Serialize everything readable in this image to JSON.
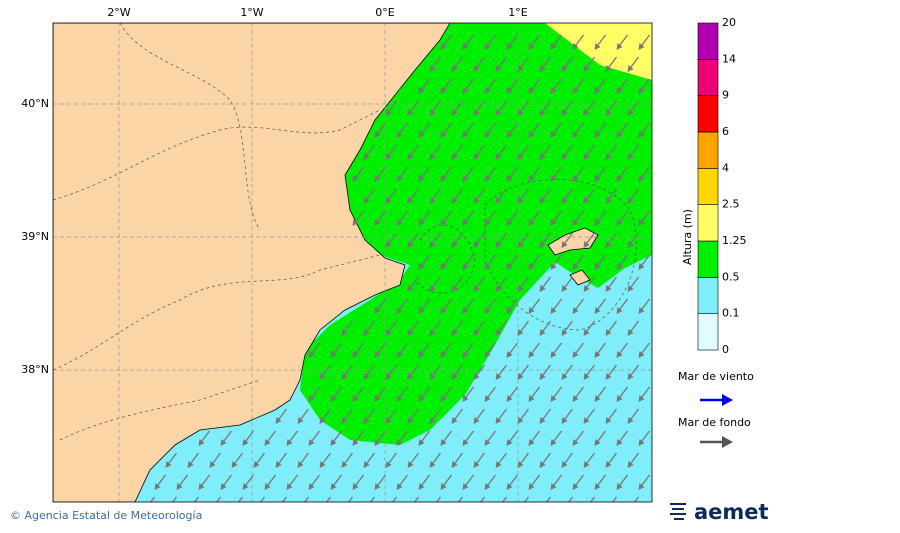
{
  "map": {
    "lon_labels": [
      "2°W",
      "1°W",
      "0°E",
      "1°E"
    ],
    "lat_labels": [
      "40°N",
      "39°N",
      "38°N"
    ]
  },
  "colorbar": {
    "title": "Altura (m)",
    "levels": [
      0,
      0.1,
      0.5,
      1.25,
      2.5,
      4,
      6,
      9,
      14,
      20
    ],
    "colors": [
      "#e0fcff",
      "#80eefa",
      "#00ee00",
      "#ffff66",
      "#ffd700",
      "#ffa500",
      "#ff0000",
      "#ee0077",
      "#b000b0"
    ]
  },
  "legend": {
    "items": [
      {
        "name": "Mar de viento",
        "color": "#0000ee"
      },
      {
        "name": "Mar de fondo",
        "color": "#555555"
      }
    ]
  },
  "footer": {
    "credit": "© Agencia Estatal de Meteorología",
    "logo": "aemet"
  }
}
